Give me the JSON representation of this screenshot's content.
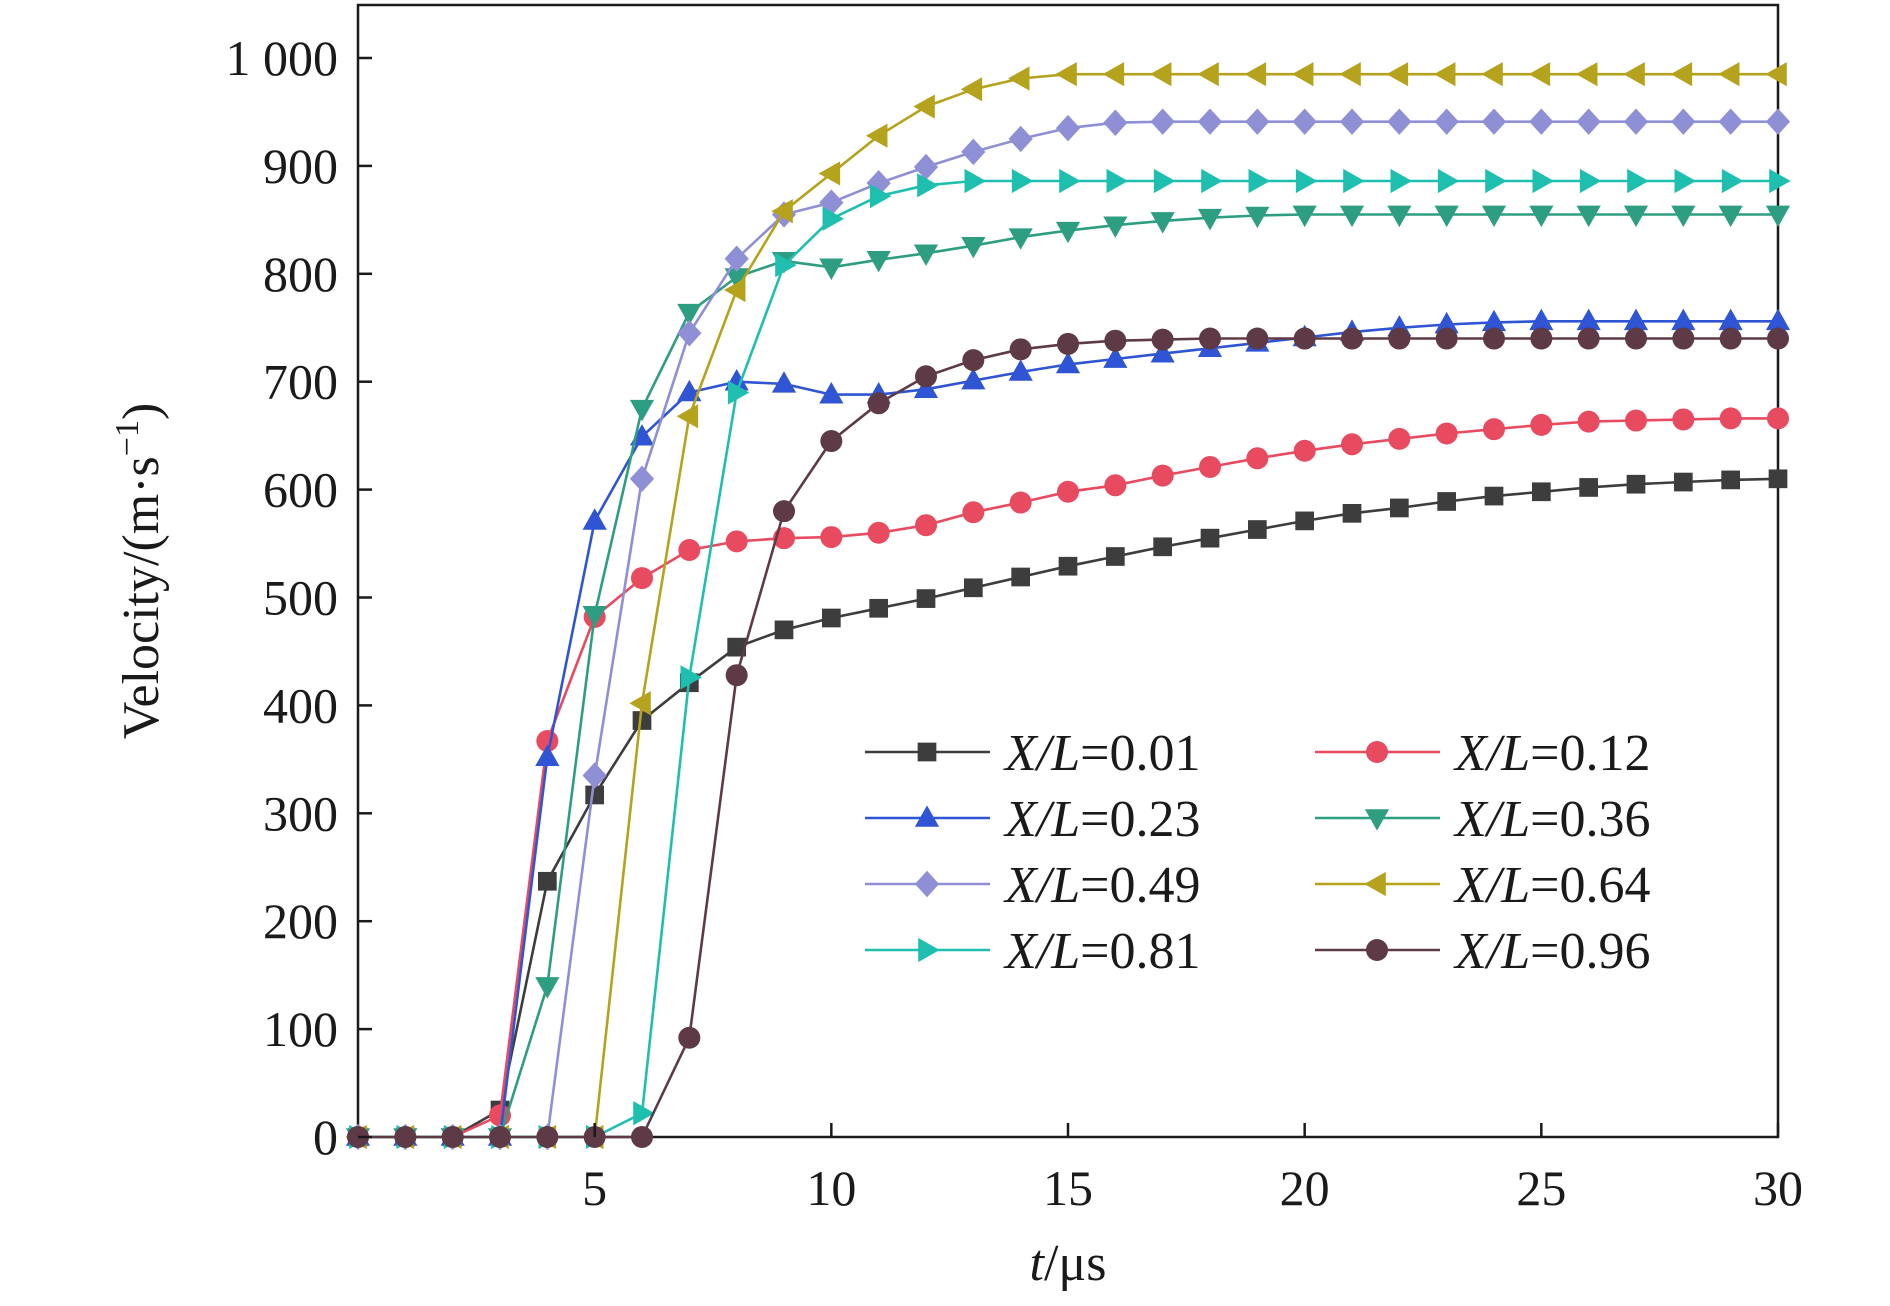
{
  "chart_data": {
    "type": "line",
    "xlabel": {
      "italic": "t",
      "rest": "/μs"
    },
    "ylabel": {
      "text": "Velocity/(m·s",
      "sup": "−1",
      "close": ")"
    },
    "xlim": [
      0,
      30
    ],
    "ylim": [
      0,
      1000
    ],
    "xticks": [
      5,
      10,
      15,
      20,
      25,
      30
    ],
    "xtick_labels": [
      "5",
      "10",
      "15",
      "20",
      "25",
      "30"
    ],
    "yticks": [
      0,
      100,
      200,
      300,
      400,
      500,
      600,
      700,
      800,
      900,
      1000
    ],
    "ytick_labels": [
      "0",
      "100",
      "200",
      "300",
      "400",
      "500",
      "600",
      "700",
      "800",
      "900",
      "1 000"
    ],
    "grid": false,
    "legend_position": "lower-right",
    "x": [
      0,
      1,
      2,
      3,
      4,
      5,
      6,
      7,
      8,
      9,
      10,
      11,
      12,
      13,
      14,
      15,
      16,
      17,
      18,
      19,
      20,
      21,
      22,
      23,
      24,
      25,
      26,
      27,
      28,
      29,
      30
    ],
    "series": [
      {
        "name": "X/L=0.01",
        "name_italic": "X/L",
        "name_value": "=0.01",
        "color": "#3d3d3d",
        "marker": "square",
        "values": [
          0,
          0,
          0,
          25,
          237,
          317,
          386,
          421,
          454,
          470,
          481,
          490,
          499,
          509,
          519,
          529,
          538,
          547,
          555,
          563,
          571,
          578,
          583,
          589,
          594,
          598,
          602,
          605,
          607,
          609,
          610
        ]
      },
      {
        "name": "X/L=0.12",
        "name_italic": "X/L",
        "name_value": "=0.12",
        "color": "#e84a5f",
        "marker": "circle",
        "values": [
          0,
          0,
          0,
          20,
          367,
          482,
          518,
          544,
          552,
          555,
          556,
          560,
          567,
          579,
          588,
          598,
          604,
          613,
          621,
          629,
          636,
          642,
          647,
          652,
          656,
          660,
          663,
          664,
          665,
          666,
          666
        ]
      },
      {
        "name": "X/L=0.23",
        "name_italic": "X/L",
        "name_value": "=0.23",
        "color": "#2f55d4",
        "marker": "triangle-up",
        "values": [
          0,
          0,
          0,
          0,
          352,
          571,
          649,
          690,
          700,
          698,
          688,
          688,
          693,
          701,
          709,
          716,
          721,
          726,
          731,
          736,
          741,
          746,
          750,
          753,
          755,
          756,
          756,
          756,
          756,
          756,
          756
        ]
      },
      {
        "name": "X/L=0.36",
        "name_italic": "X/L",
        "name_value": "=0.36",
        "color": "#2e9e82",
        "marker": "triangle-down",
        "values": [
          0,
          0,
          0,
          0,
          140,
          484,
          675,
          764,
          797,
          812,
          806,
          813,
          819,
          826,
          834,
          840,
          845,
          849,
          852,
          854,
          855,
          855,
          855,
          855,
          855,
          855,
          855,
          855,
          855,
          855,
          855
        ]
      },
      {
        "name": "X/L=0.49",
        "name_italic": "X/L",
        "name_value": "=0.49",
        "color": "#8f8fd6",
        "marker": "diamond",
        "values": [
          0,
          0,
          0,
          0,
          0,
          335,
          610,
          745,
          814,
          855,
          866,
          884,
          899,
          913,
          925,
          935,
          940,
          941,
          941,
          941,
          941,
          941,
          941,
          941,
          941,
          941,
          941,
          941,
          941,
          941,
          941
        ]
      },
      {
        "name": "X/L=0.64",
        "name_italic": "X/L",
        "name_value": "=0.64",
        "color": "#b5a21d",
        "marker": "triangle-left",
        "values": [
          0,
          0,
          0,
          0,
          0,
          0,
          402,
          668,
          785,
          858,
          893,
          928,
          955,
          971,
          981,
          985,
          985,
          985,
          985,
          985,
          985,
          985,
          985,
          985,
          985,
          985,
          985,
          985,
          985,
          985,
          985
        ]
      },
      {
        "name": "X/L=0.81",
        "name_italic": "X/L",
        "name_value": "=0.81",
        "color": "#1fbfb0",
        "marker": "triangle-right",
        "values": [
          0,
          0,
          0,
          0,
          0,
          0,
          22,
          426,
          690,
          808,
          851,
          872,
          882,
          886,
          886,
          886,
          886,
          886,
          886,
          886,
          886,
          886,
          886,
          886,
          886,
          886,
          886,
          886,
          886,
          886,
          886
        ]
      },
      {
        "name": "X/L=0.96",
        "name_italic": "X/L",
        "name_value": "=0.96",
        "color": "#5e3a46",
        "marker": "circle",
        "values": [
          0,
          0,
          0,
          0,
          0,
          0,
          0,
          92,
          428,
          580,
          645,
          680,
          705,
          720,
          730,
          735,
          738,
          739,
          740,
          740,
          740,
          740,
          740,
          740,
          740,
          740,
          740,
          740,
          740,
          740,
          740
        ]
      }
    ]
  }
}
